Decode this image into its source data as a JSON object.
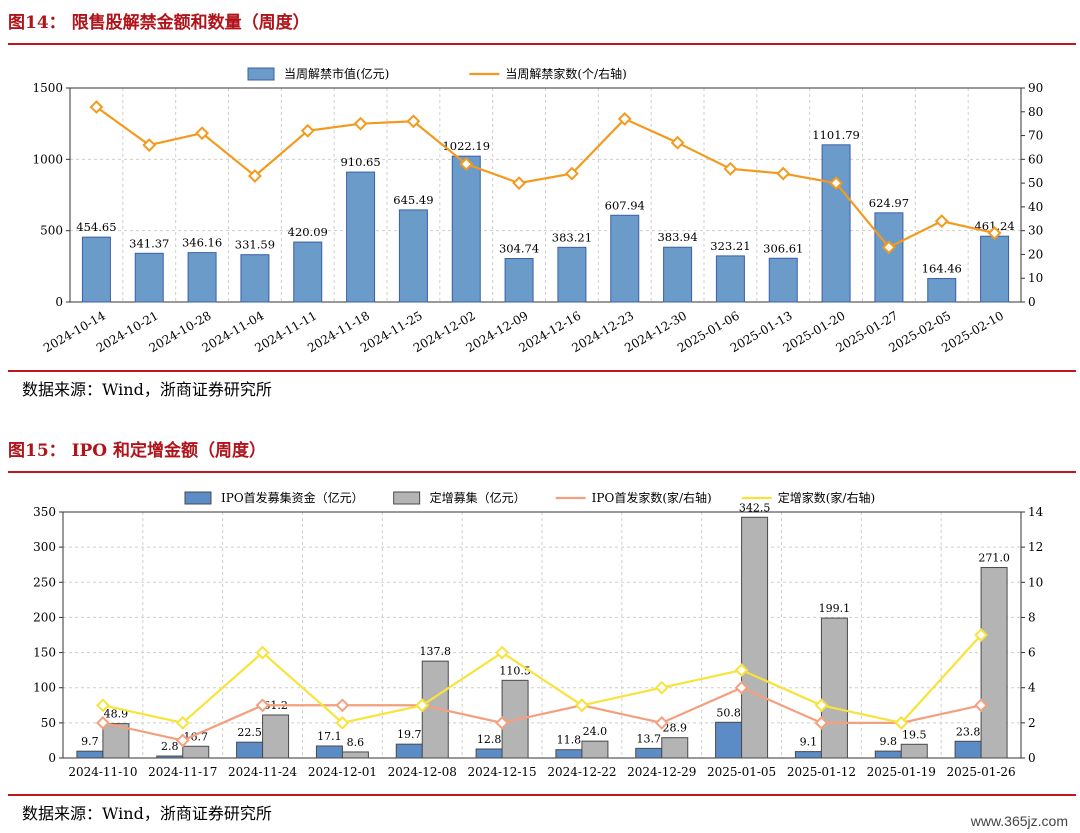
{
  "figure1": {
    "title": "图14：  限售股解禁金额和数量（周度）",
    "source": "数据来源：Wind，浙商证券研究所",
    "chart_data": {
      "type": "bar",
      "categories": [
        "2024-10-14",
        "2024-10-21",
        "2024-10-28",
        "2024-11-04",
        "2024-11-11",
        "2024-11-18",
        "2024-11-25",
        "2024-12-02",
        "2024-12-09",
        "2024-12-16",
        "2024-12-23",
        "2024-12-30",
        "2025-01-06",
        "2025-01-13",
        "2025-01-20",
        "2025-01-27",
        "2025-02-05",
        "2025-02-10"
      ],
      "series": [
        {
          "name": "当周解禁市值(亿元)",
          "type": "bar",
          "axis": "left",
          "color": "#6b9bc9",
          "values": [
            454.65,
            341.37,
            346.16,
            331.59,
            420.09,
            910.65,
            645.49,
            1022.19,
            304.74,
            383.21,
            607.94,
            383.94,
            323.21,
            306.61,
            1101.79,
            624.97,
            164.46,
            461.24
          ],
          "labels": [
            "454.65",
            "341.37",
            "346.16",
            "331.59",
            "420.09",
            "910.65",
            "645.49",
            "1022.19",
            "304.74",
            "383.21",
            "607.94",
            "383.94",
            "323.21",
            "306.61",
            "1101.79",
            "624.97",
            "164.46",
            "461.24"
          ]
        },
        {
          "name": "当周解禁家数(个/右轴)",
          "type": "line",
          "axis": "right",
          "color": "#f39a1e",
          "values": [
            82,
            66,
            71,
            53,
            72,
            75,
            76,
            58,
            50,
            54,
            77,
            67,
            56,
            54,
            50,
            23,
            34,
            29
          ]
        }
      ],
      "ylim_left": [
        0,
        1500
      ],
      "yticks_left": [
        "0",
        "500",
        "1000",
        "1500"
      ],
      "ylim_right": [
        0,
        90
      ],
      "yticks_right": [
        "0",
        "10",
        "20",
        "30",
        "40",
        "50",
        "60",
        "70",
        "80",
        "90"
      ],
      "grid": true,
      "legend": "top-center"
    }
  },
  "figure2": {
    "title": "图15：  IPO 和定增金额（周度）",
    "source": "数据来源：Wind，浙商证券研究所",
    "chart_data": {
      "type": "bar",
      "categories": [
        "2024-11-10",
        "2024-11-17",
        "2024-11-24",
        "2024-12-01",
        "2024-12-08",
        "2024-12-15",
        "2024-12-22",
        "2024-12-29",
        "2025-01-05",
        "2025-01-12",
        "2025-01-19",
        "2025-01-26"
      ],
      "series": [
        {
          "name": "IPO首发募集资金（亿元）",
          "type": "bar",
          "axis": "left",
          "color": "#5b8cc6",
          "values": [
            9.7,
            2.8,
            22.5,
            17.1,
            19.7,
            12.8,
            11.8,
            13.7,
            50.8,
            9.1,
            9.8,
            23.8
          ],
          "labels": [
            "9.7",
            "2.8",
            "22.5",
            "17.1",
            "19.7",
            "12.8",
            "11.8",
            "13.7",
            "50.8",
            "9.1",
            "9.8",
            "23.8"
          ]
        },
        {
          "name": "定增募集（亿元）",
          "type": "bar",
          "axis": "left",
          "color": "#b4b4b4",
          "values": [
            48.9,
            16.7,
            61.2,
            8.6,
            137.8,
            110.5,
            24.0,
            28.9,
            342.5,
            199.1,
            19.5,
            271.0
          ],
          "labels": [
            "48.9",
            "16.7",
            "61.2",
            "8.6",
            "137.8",
            "110.5",
            "24.0",
            "28.9",
            "342.5",
            "199.1",
            "19.5",
            "271.0"
          ]
        },
        {
          "name": "IPO首发家数(家/右轴)",
          "type": "line",
          "axis": "right",
          "color": "#f4a07f",
          "values": [
            2,
            1,
            3,
            3,
            3,
            2,
            3,
            2,
            4,
            2,
            2,
            3
          ]
        },
        {
          "name": "定增家数(家/右轴)",
          "type": "line",
          "axis": "right",
          "color": "#f7e33a",
          "values": [
            3,
            2,
            6,
            2,
            3,
            6,
            3,
            4,
            5,
            3,
            2,
            7
          ]
        }
      ],
      "ylim_left": [
        0,
        350
      ],
      "yticks_left": [
        "0",
        "50",
        "100",
        "150",
        "200",
        "250",
        "300",
        "350"
      ],
      "ylim_right": [
        0,
        14
      ],
      "yticks_right": [
        "0",
        "2",
        "4",
        "6",
        "8",
        "10",
        "12",
        "14"
      ],
      "grid": true,
      "legend": "top-center"
    }
  },
  "watermark": "www.365jz.com",
  "colors": {
    "title_red": "#b1131a",
    "rule_red": "#c0161f"
  }
}
